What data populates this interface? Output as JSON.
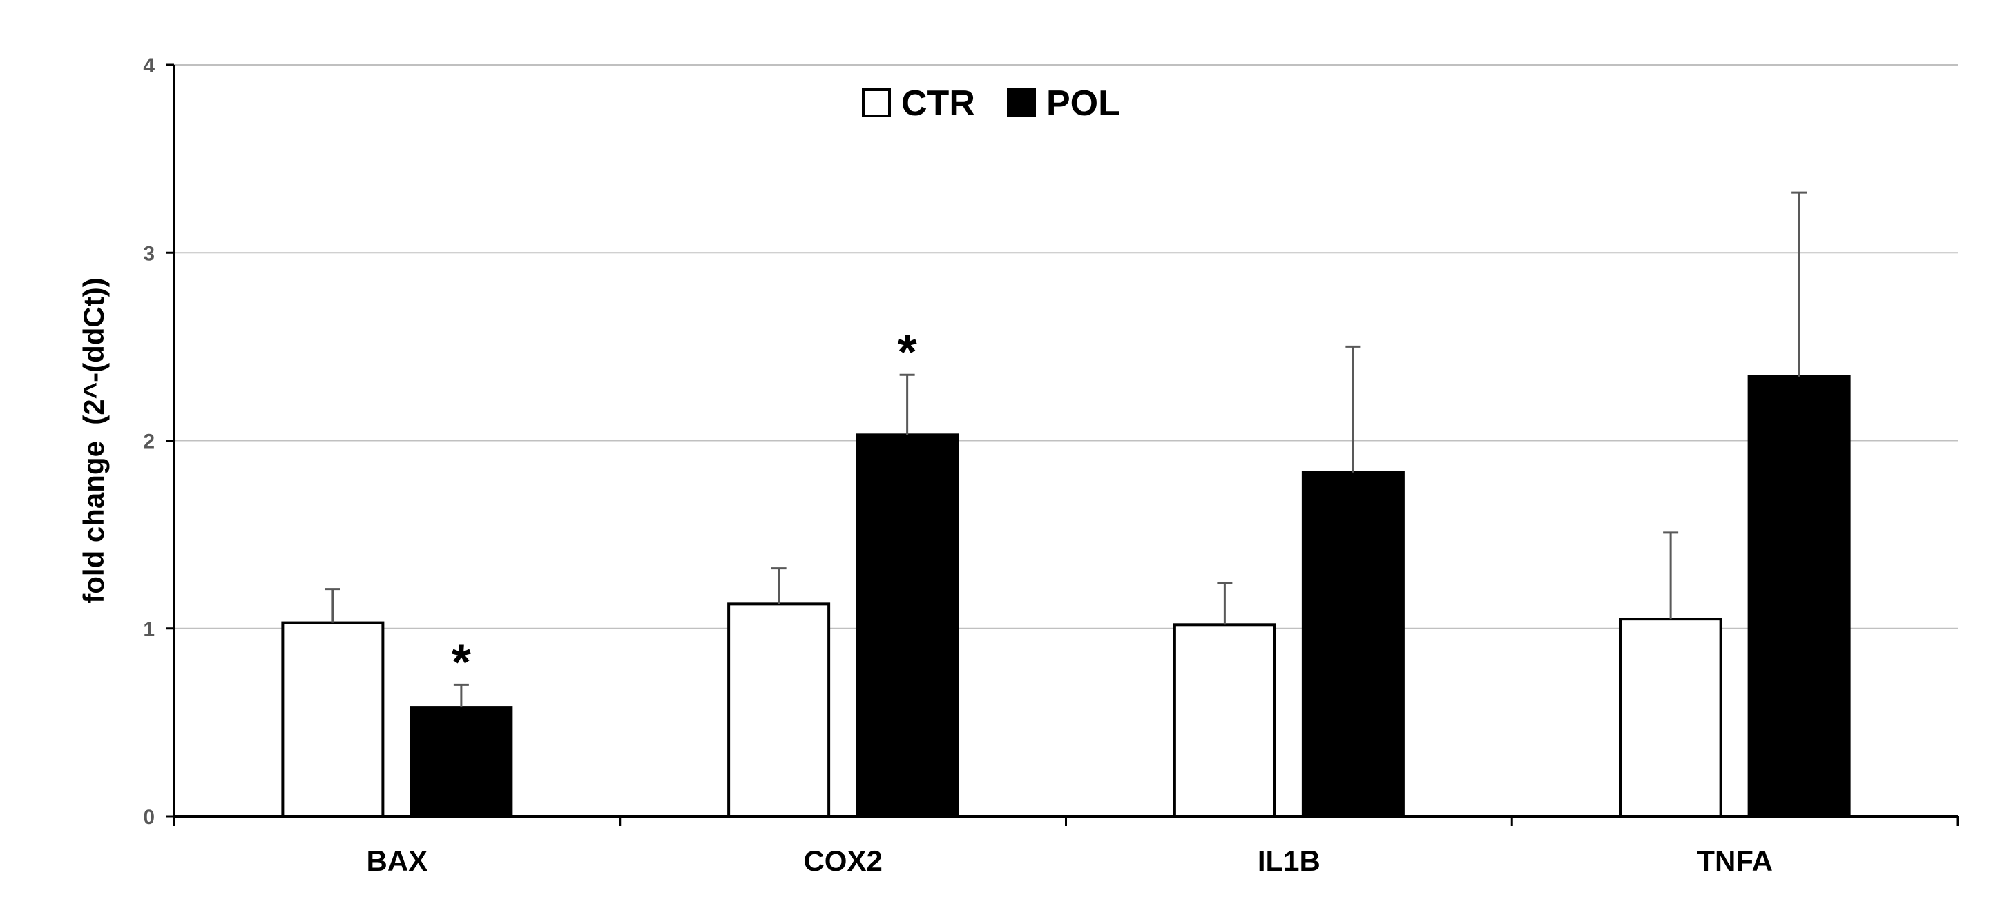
{
  "chart_data": {
    "type": "bar",
    "title": "",
    "xlabel": "",
    "ylabel": "fold change  (2^-(ddCt))",
    "ylim": [
      0,
      4
    ],
    "yticks": [
      "0",
      "1",
      "2",
      "3",
      "4"
    ],
    "grid": true,
    "legend_position": "top-center",
    "categories": [
      "BAX",
      "COX2",
      "IL1B",
      "TNFA"
    ],
    "series": [
      {
        "name": "CTR",
        "fill": "#ffffff",
        "stroke": "#000000",
        "values": [
          1.03,
          1.13,
          1.02,
          1.05
        ],
        "errors": [
          0.18,
          0.19,
          0.22,
          0.46
        ],
        "significance": [
          "",
          "",
          "",
          ""
        ]
      },
      {
        "name": "POL",
        "fill": "#000000",
        "stroke": "#000000",
        "values": [
          0.58,
          2.03,
          1.83,
          2.34
        ],
        "errors": [
          0.12,
          0.32,
          0.67,
          0.98
        ],
        "significance": [
          "*",
          "*",
          "",
          ""
        ]
      }
    ],
    "colors": {
      "grid": "#c0c0c0",
      "axis": "#000000",
      "error_bar": "#595959",
      "tick_text": "#595959"
    }
  }
}
